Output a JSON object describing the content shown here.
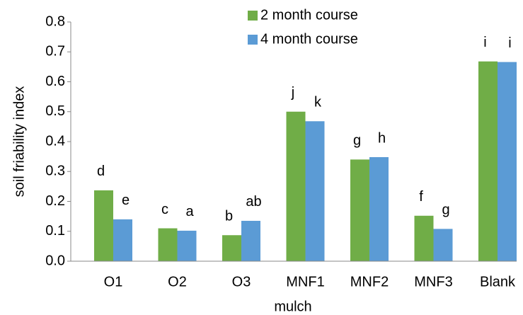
{
  "chart_data": {
    "type": "bar",
    "y_label": "soil friability index",
    "x_label": "mulch",
    "categories": [
      "O1",
      "O2",
      "O3",
      "MNF1",
      "MNF2",
      "MNF3",
      "Blank"
    ],
    "series": [
      {
        "name": "2 month course",
        "color": "#70ad47",
        "values": [
          0.237,
          0.11,
          0.087,
          0.5,
          0.34,
          0.152,
          0.668
        ],
        "letters": [
          "d",
          "c",
          "b",
          "j",
          "g",
          "f",
          "i"
        ]
      },
      {
        "name": "4 month course",
        "color": "#5b9bd5",
        "values": [
          0.14,
          0.102,
          0.135,
          0.468,
          0.348,
          0.108,
          0.666
        ],
        "letters": [
          "e",
          "a",
          "ab",
          "k",
          "h",
          "g",
          "i"
        ]
      }
    ],
    "ylim": [
      0,
      0.8
    ],
    "yticks": [
      {
        "value": 0,
        "label": "0.0"
      },
      0.1,
      0.2,
      0.3,
      0.4,
      0.5,
      0.6,
      0.7,
      0.8
    ],
    "grid": false
  }
}
